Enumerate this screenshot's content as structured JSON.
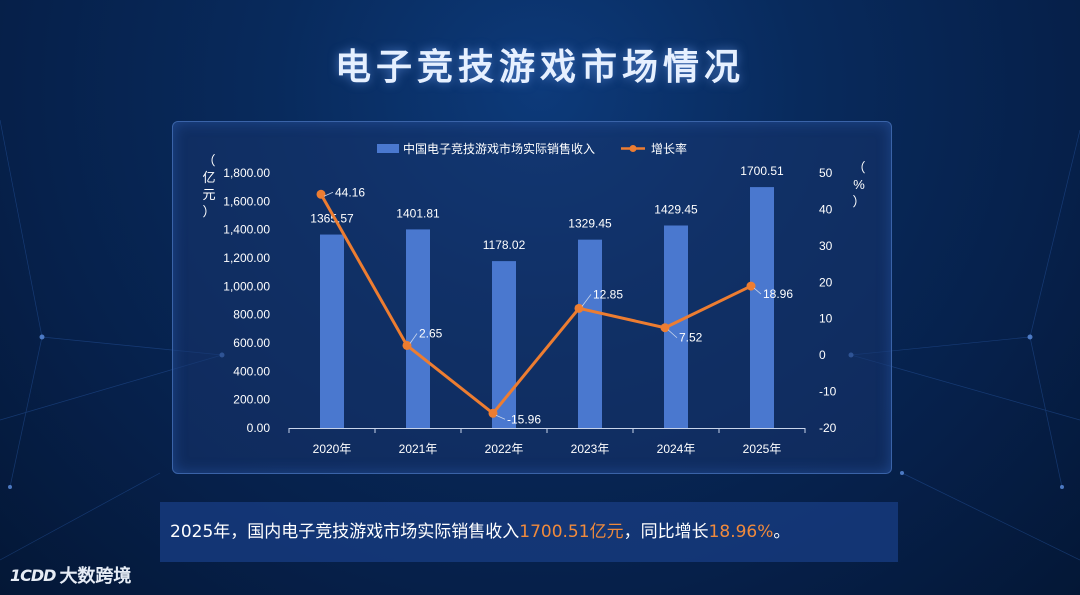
{
  "title": "电子竞技游戏市场情况",
  "chart_data": {
    "type": "bar+line",
    "categories": [
      "2020年",
      "2021年",
      "2022年",
      "2023年",
      "2024年",
      "2025年"
    ],
    "series": [
      {
        "name": "中国电子竞技游戏市场实际销售收入",
        "type": "bar",
        "axis": "left",
        "values": [
          1365.57,
          1401.81,
          1178.02,
          1329.45,
          1429.45,
          1700.51
        ],
        "labels": [
          "1365.57",
          "1401.81",
          "1178.02",
          "1329.45",
          "1429.45",
          "1700.51"
        ]
      },
      {
        "name": "增长率",
        "type": "line",
        "axis": "right",
        "values": [
          44.16,
          2.65,
          -15.96,
          12.85,
          7.52,
          18.96
        ],
        "labels": [
          "44.16",
          "2.65",
          "-15.96",
          "12.85",
          "7.52",
          "18.96"
        ]
      }
    ],
    "y_left": {
      "label": "（亿元）",
      "ylim": [
        0,
        1800
      ],
      "ticks": [
        "0.00",
        "200.00",
        "400.00",
        "600.00",
        "800.00",
        "1,000.00",
        "1,200.00",
        "1,400.00",
        "1,600.00",
        "1,800.00"
      ]
    },
    "y_right": {
      "label": "（%）",
      "ylim": [
        -20,
        50
      ],
      "ticks": [
        "-20",
        "-10",
        "0",
        "10",
        "20",
        "30",
        "40",
        "50"
      ]
    },
    "legend_position": "top-center",
    "colors": {
      "bar": "#4a78cf",
      "line": "#ed7d31"
    }
  },
  "summary": {
    "prefix": "2025年，国内电子竞技游戏市场实际销售收入",
    "revenue": "1700.51亿元",
    "middle": "，同比增长",
    "growth": "18.96%",
    "suffix": "。"
  },
  "logo": {
    "mark": "1CDD",
    "text": "大数跨境"
  }
}
